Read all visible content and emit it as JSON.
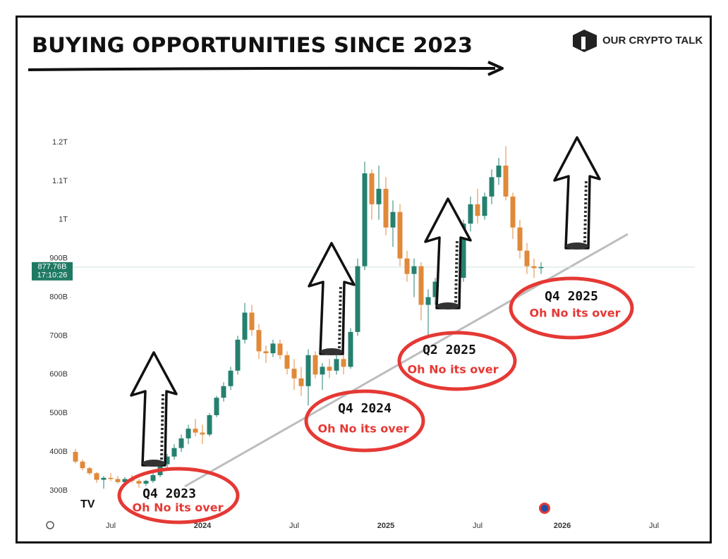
{
  "chart_data": {
    "type": "candlestick",
    "title": "BUYING OPPORTUNITIES SINCE 2023",
    "brand": "OUR CRYPTO TALK",
    "categories": [
      null,
      null,
      null,
      null,
      null,
      "Jul",
      null,
      null,
      null,
      null,
      null,
      null,
      null,
      null,
      null,
      null,
      null,
      null,
      "2024",
      null,
      null,
      null,
      null,
      null,
      null,
      null,
      null,
      null,
      null,
      null,
      null,
      "Jul",
      null,
      null,
      null,
      null,
      null,
      null,
      null,
      null,
      null,
      null,
      null,
      null,
      "2025",
      null,
      null,
      null,
      null,
      null,
      null,
      null,
      null,
      null,
      null,
      null,
      null,
      "Jul",
      null,
      null,
      null,
      null,
      null,
      null,
      null,
      null,
      null,
      null,
      null,
      "2026",
      null,
      null,
      null,
      null,
      null,
      null,
      null,
      null,
      null,
      null,
      null,
      null,
      "Jul"
    ],
    "open": [
      400,
      375,
      358,
      345,
      328,
      333,
      330,
      322,
      330,
      325,
      318,
      325,
      340,
      368,
      388,
      410,
      435,
      460,
      450,
      445,
      495,
      540,
      570,
      610,
      690,
      760,
      715,
      660,
      655,
      680,
      650,
      615,
      590,
      570,
      650,
      600,
      620,
      610,
      640,
      620,
      710,
      880,
      1120,
      1040,
      1080,
      980,
      1020,
      900,
      860,
      880,
      780,
      800,
      840,
      870,
      820,
      850,
      990,
      1040,
      1010,
      1060,
      1110,
      1140,
      1060,
      980,
      920,
      880,
      875,
      null,
      null,
      null,
      null,
      null,
      null,
      null,
      null,
      null,
      null,
      null,
      null,
      null,
      null,
      null,
      null
    ],
    "high": [
      408,
      380,
      362,
      348,
      338,
      345,
      338,
      335,
      340,
      330,
      328,
      345,
      372,
      395,
      420,
      445,
      470,
      485,
      470,
      500,
      545,
      580,
      620,
      700,
      785,
      780,
      730,
      675,
      690,
      690,
      660,
      640,
      620,
      665,
      660,
      630,
      640,
      650,
      660,
      720,
      900,
      1150,
      1130,
      1140,
      1110,
      1050,
      1040,
      920,
      900,
      890,
      820,
      850,
      910,
      890,
      860,
      1000,
      1060,
      1080,
      1070,
      1130,
      1160,
      1190,
      1070,
      1000,
      940,
      900,
      890,
      null,
      null,
      null,
      null,
      null,
      null,
      null,
      null,
      null,
      null,
      null,
      null,
      null,
      null,
      null,
      null
    ],
    "low": [
      370,
      352,
      340,
      320,
      305,
      325,
      318,
      315,
      320,
      308,
      312,
      320,
      335,
      360,
      380,
      400,
      420,
      440,
      420,
      440,
      490,
      530,
      560,
      600,
      680,
      700,
      640,
      630,
      645,
      640,
      600,
      560,
      545,
      520,
      590,
      560,
      590,
      600,
      600,
      615,
      700,
      870,
      1000,
      1000,
      960,
      930,
      880,
      840,
      800,
      740,
      700,
      780,
      810,
      800,
      780,
      840,
      970,
      990,
      1000,
      1040,
      1090,
      1050,
      950,
      900,
      860,
      850,
      860,
      null,
      null,
      null,
      null,
      null,
      null,
      null,
      null,
      null,
      null,
      null,
      null,
      null,
      null,
      null,
      null
    ],
    "close": [
      375,
      358,
      345,
      328,
      333,
      330,
      322,
      330,
      325,
      318,
      325,
      340,
      368,
      388,
      410,
      435,
      460,
      450,
      445,
      495,
      540,
      570,
      610,
      690,
      760,
      715,
      660,
      655,
      680,
      650,
      615,
      590,
      570,
      650,
      600,
      620,
      610,
      640,
      620,
      710,
      880,
      1120,
      1040,
      1080,
      980,
      1020,
      900,
      860,
      880,
      780,
      800,
      840,
      870,
      820,
      850,
      990,
      1040,
      1010,
      1060,
      1110,
      1140,
      1060,
      980,
      920,
      880,
      875,
      877.76,
      null,
      null,
      null,
      null,
      null,
      null,
      null,
      null,
      null,
      null,
      null,
      null,
      null,
      null,
      null,
      null
    ],
    "up_color": "#26806f",
    "down_color": "#e0893a",
    "ylim": [
      230,
      1240
    ],
    "yticks": [
      {
        "value": 300,
        "label": "300B"
      },
      {
        "value": 400,
        "label": "400B"
      },
      {
        "value": 500,
        "label": "500B"
      },
      {
        "value": 600,
        "label": "600B"
      },
      {
        "value": 700,
        "label": "700B"
      },
      {
        "value": 800,
        "label": "800B"
      },
      {
        "value": 900,
        "label": "900B"
      },
      {
        "value": 1000,
        "label": "1T"
      },
      {
        "value": 1100,
        "label": "1.1T"
      },
      {
        "value": 1200,
        "label": "1.2T"
      }
    ],
    "last_price": {
      "value": 877.76,
      "label": "877.76B"
    },
    "countdown": "17:10:26",
    "annotations": [
      {
        "title": "Q4 2023",
        "subtitle": "Oh No its over"
      },
      {
        "title": "Q4 2024",
        "subtitle": "Oh No its over"
      },
      {
        "title": "Q2 2025",
        "subtitle": "Oh No its over"
      },
      {
        "title": "Q4 2025",
        "subtitle": "Oh No its over"
      }
    ]
  }
}
